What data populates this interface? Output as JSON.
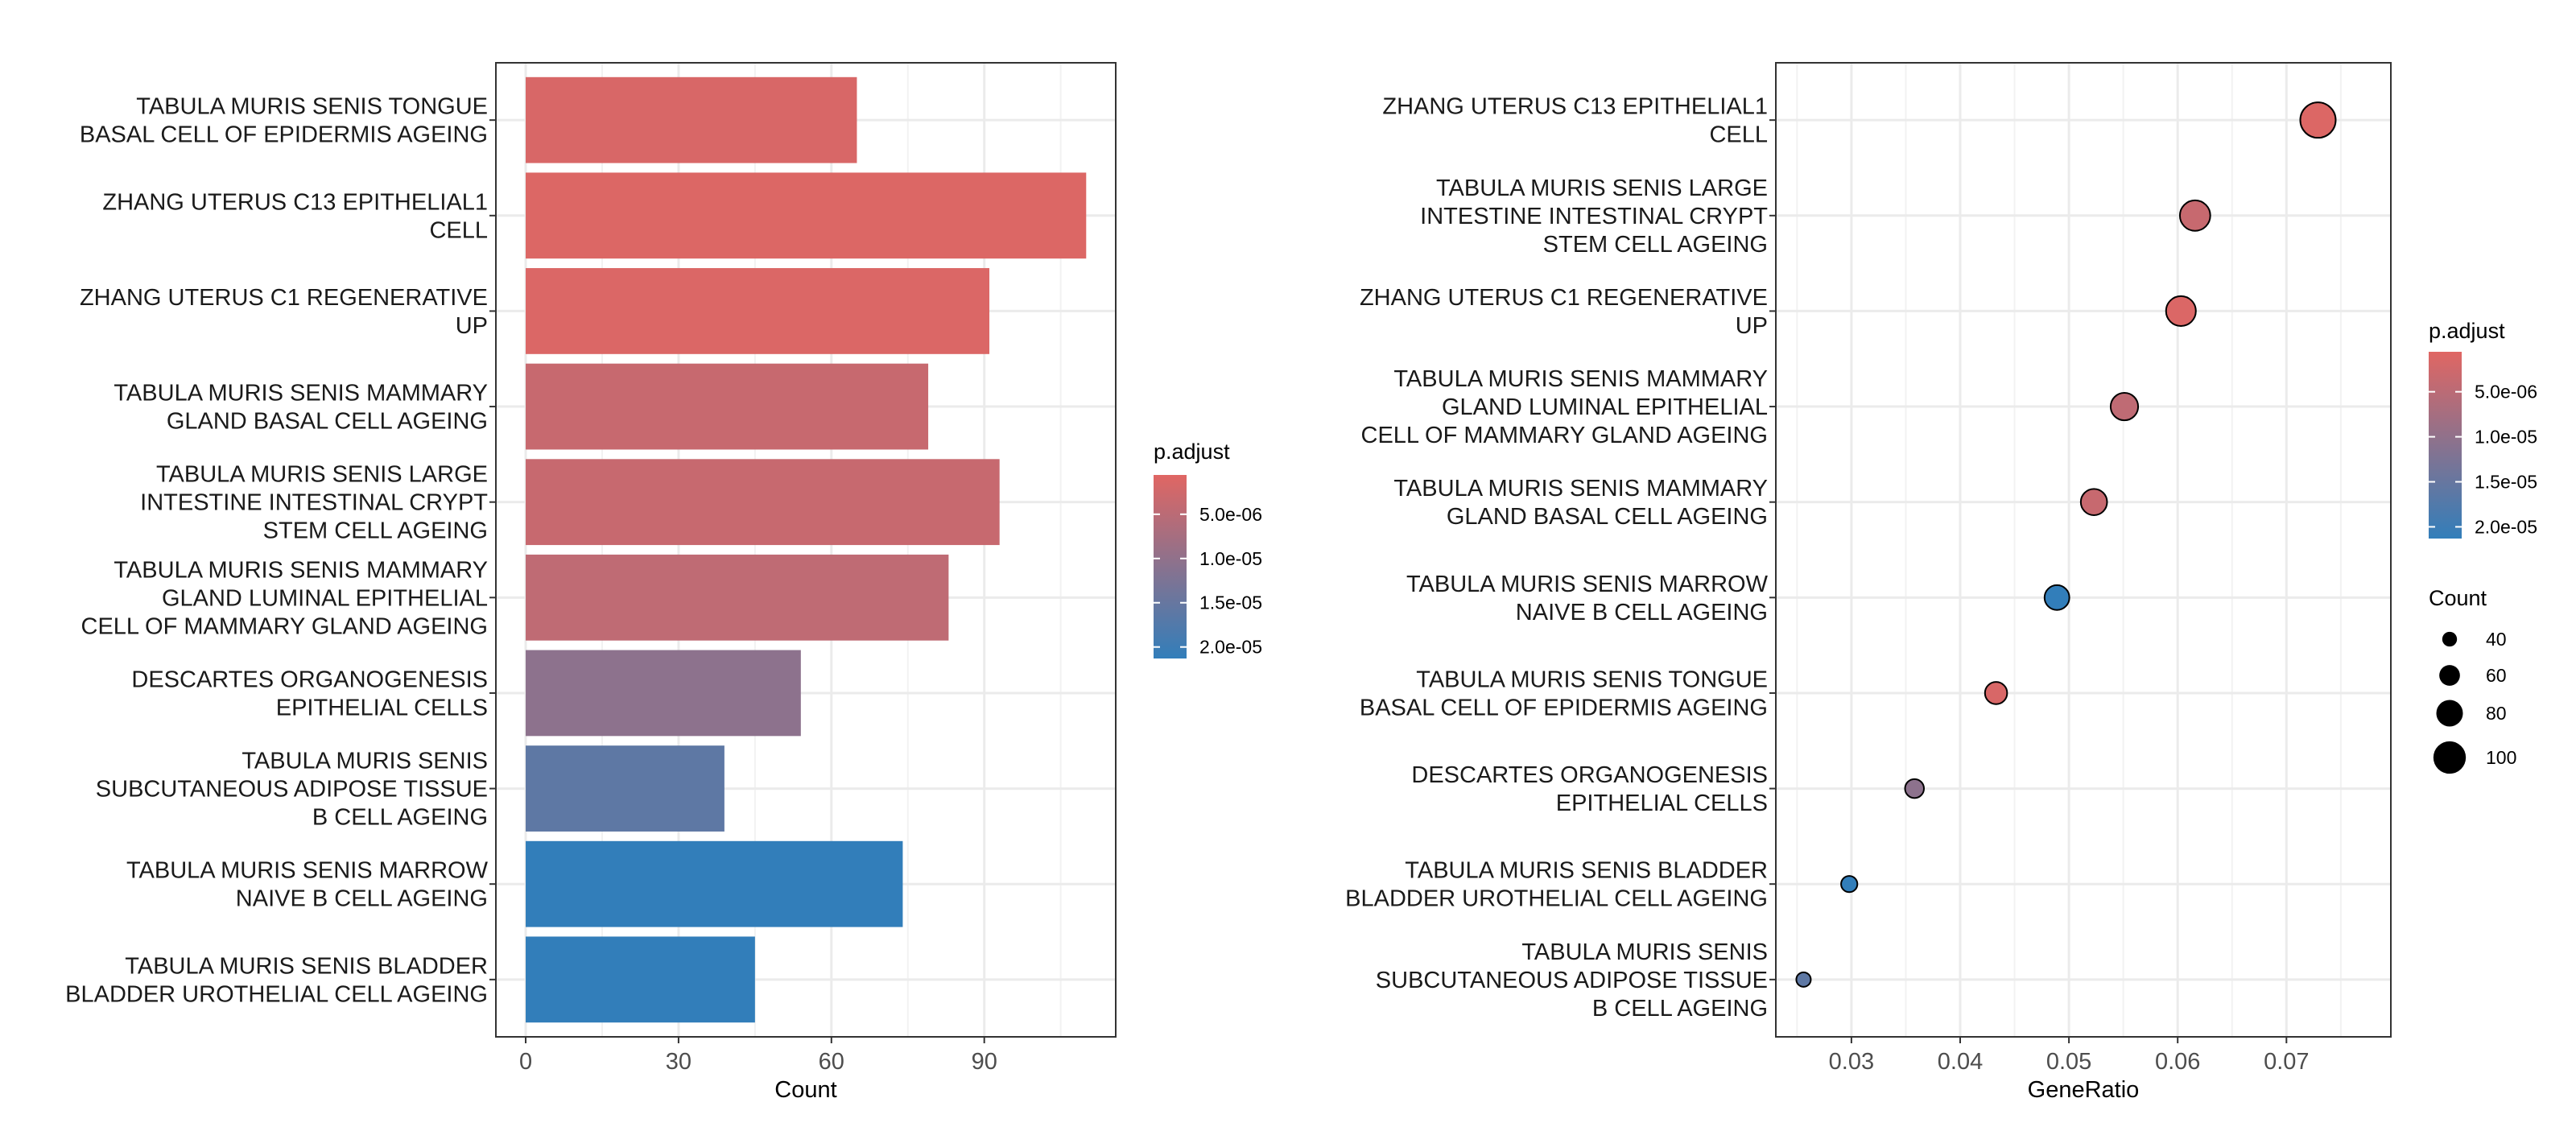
{
  "chart_data": [
    {
      "type": "bar",
      "orientation": "horizontal",
      "xlabel": "Count",
      "ylabel": "",
      "xlim": [
        -5.85,
        115.8
      ],
      "xticks": [
        0,
        30,
        60,
        90
      ],
      "grid": true,
      "categories": [
        [
          "TABULA MURIS SENIS TONGUE",
          "BASAL CELL OF EPIDERMIS AGEING"
        ],
        [
          "ZHANG UTERUS C13 EPITHELIAL1",
          "CELL"
        ],
        [
          "ZHANG UTERUS C1 REGENERATIVE",
          "UP"
        ],
        [
          "TABULA MURIS SENIS MAMMARY",
          "GLAND BASAL CELL AGEING"
        ],
        [
          "TABULA MURIS SENIS LARGE",
          "INTESTINE INTESTINAL CRYPT",
          "STEM CELL AGEING"
        ],
        [
          "TABULA MURIS SENIS MAMMARY",
          "GLAND LUMINAL EPITHELIAL",
          "CELL OF MAMMARY GLAND AGEING"
        ],
        [
          "DESCARTES ORGANOGENESIS",
          "EPITHELIAL CELLS"
        ],
        [
          "TABULA MURIS SENIS",
          "SUBCUTANEOUS ADIPOSE TISSUE",
          "B CELL AGEING"
        ],
        [
          "TABULA MURIS SENIS MARROW",
          "NAIVE B CELL AGEING"
        ],
        [
          "TABULA MURIS SENIS BLADDER",
          "BLADDER UROTHELIAL CELL AGEING"
        ]
      ],
      "values": [
        65,
        110,
        91,
        79,
        93,
        83,
        54,
        39,
        74,
        45
      ],
      "p_adjust": [
        1.5e-06,
        1e-06,
        1.2e-06,
        3.5e-06,
        3.5e-06,
        4.5e-06,
        1.05e-05,
        1.6e-05,
        2.2e-05,
        2.2e-05
      ],
      "legend": {
        "title": "p.adjust",
        "placement": "right",
        "range": [
          5.6e-07,
          2.13e-05
        ],
        "ticks": [
          5e-06,
          1e-05,
          1.5e-05,
          2e-05
        ],
        "tick_labels": [
          "5.0e-06",
          "1.0e-05",
          "1.5e-05",
          "2.0e-05"
        ],
        "color_low": "#e06663",
        "color_high": "#327eba"
      }
    },
    {
      "type": "scatter",
      "xlabel": "GeneRatio",
      "ylabel": "",
      "xlim": [
        0.02305,
        0.0796
      ],
      "xticks": [
        0.03,
        0.04,
        0.05,
        0.06,
        0.07
      ],
      "xtick_labels": [
        "0.03",
        "0.04",
        "0.05",
        "0.06",
        "0.07"
      ],
      "grid": true,
      "categories": [
        [
          "ZHANG UTERUS C13 EPITHELIAL1",
          "CELL"
        ],
        [
          "TABULA MURIS SENIS LARGE",
          "INTESTINE INTESTINAL CRYPT",
          "STEM CELL AGEING"
        ],
        [
          "ZHANG UTERUS C1 REGENERATIVE",
          "UP"
        ],
        [
          "TABULA MURIS SENIS MAMMARY",
          "GLAND LUMINAL EPITHELIAL",
          "CELL OF MAMMARY GLAND AGEING"
        ],
        [
          "TABULA MURIS SENIS MAMMARY",
          "GLAND BASAL CELL AGEING"
        ],
        [
          "TABULA MURIS SENIS MARROW",
          "NAIVE B CELL AGEING"
        ],
        [
          "TABULA MURIS SENIS TONGUE",
          "BASAL CELL OF EPIDERMIS AGEING"
        ],
        [
          "DESCARTES ORGANOGENESIS",
          "EPITHELIAL CELLS"
        ],
        [
          "TABULA MURIS SENIS BLADDER",
          "BLADDER UROTHELIAL CELL AGEING"
        ],
        [
          "TABULA MURIS SENIS",
          "SUBCUTANEOUS ADIPOSE TISSUE",
          "B CELL AGEING"
        ]
      ],
      "x": [
        0.0729,
        0.0616,
        0.0603,
        0.0551,
        0.0523,
        0.0489,
        0.0433,
        0.0358,
        0.0298,
        0.0256
      ],
      "count": [
        110,
        93,
        91,
        83,
        79,
        74,
        65,
        54,
        45,
        39
      ],
      "p_adjust": [
        1e-06,
        3.5e-06,
        1.2e-06,
        4.5e-06,
        3.5e-06,
        2.2e-05,
        1.5e-06,
        1.05e-05,
        2.2e-05,
        1.6e-05
      ],
      "legend": {
        "title": "p.adjust",
        "placement": "right",
        "range": [
          5.6e-07,
          2.13e-05
        ],
        "ticks": [
          5e-06,
          1e-05,
          1.5e-05,
          2e-05
        ],
        "tick_labels": [
          "5.0e-06",
          "1.0e-05",
          "1.5e-05",
          "2.0e-05"
        ],
        "color_low": "#e06663",
        "color_high": "#327eba"
      },
      "size_legend": {
        "title": "Count",
        "values": [
          40,
          60,
          80,
          100
        ],
        "labels": [
          "40",
          "60",
          "80",
          "100"
        ]
      }
    }
  ]
}
